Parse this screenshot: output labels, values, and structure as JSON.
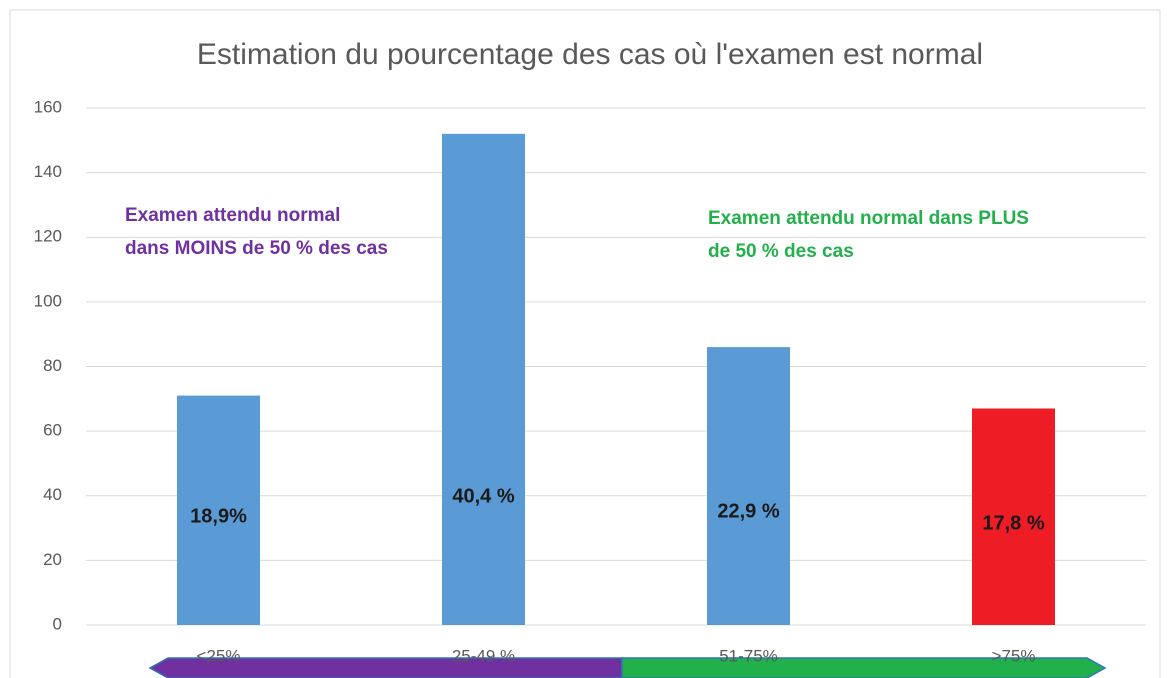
{
  "chart_data": {
    "type": "bar",
    "title": "Estimation du pourcentage des cas où l'examen est normal",
    "categories": [
      "<25%",
      "25-49 %",
      "51-75%",
      ">75%"
    ],
    "values": [
      71,
      152,
      86,
      67
    ],
    "colors": [
      "#5b9bd5",
      "#5b9bd5",
      "#5b9bd5",
      "#ee1c24"
    ],
    "bar_labels": [
      "18,9%",
      "40,4 %",
      "22,9 %",
      "17,8 %"
    ],
    "ylim": [
      0,
      160
    ],
    "yticks": [
      0,
      20,
      40,
      60,
      80,
      100,
      120,
      140,
      160
    ],
    "grid": true,
    "annotations": [
      {
        "lines": [
          "Examen attendu normal",
          "dans MOINS de 50 % des cas"
        ],
        "color": "#7030a0"
      },
      {
        "lines": [
          "Examen attendu normal dans PLUS",
          "de 50 % des cas"
        ],
        "color": "#22b04b"
      }
    ]
  }
}
